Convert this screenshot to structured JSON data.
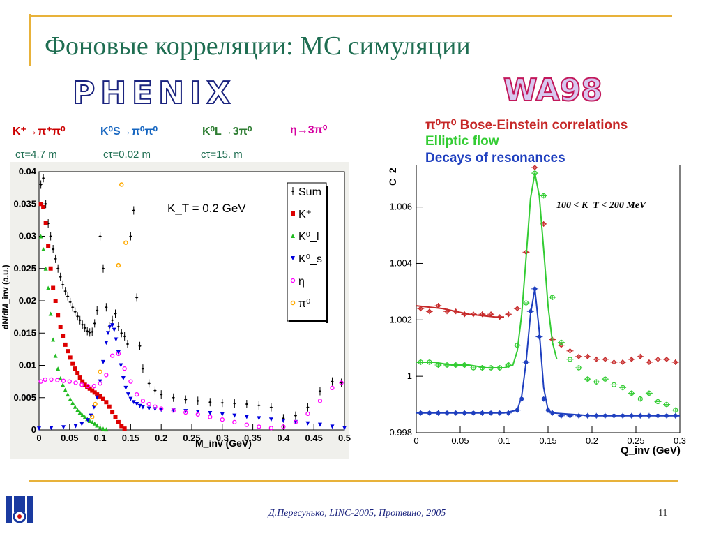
{
  "slide": {
    "title": "Фоновые корреляции: MC симуляции",
    "footer": "Д.Пересунько, LINC-2005, Протвино, 2005",
    "page_number": "11",
    "left_logo": "PHENIX",
    "right_logo": "WA98",
    "accent_color": "#e8b23a",
    "title_color": "#1f6e52"
  },
  "decays": [
    {
      "label": "K⁺→π⁺π⁰",
      "ctau": "cτ=4.7 m",
      "color": "#cc0000"
    },
    {
      "label": "K⁰S→π⁰π⁰",
      "ctau": "cτ=0.02 m",
      "color": "#1565c0"
    },
    {
      "label": "K⁰L→3π⁰",
      "ctau": "cτ=15. m",
      "color": "#2e7d32"
    },
    {
      "label": "η→3π⁰",
      "ctau": "",
      "color": "#d500a0"
    }
  ],
  "right_labels": [
    {
      "text": "π⁰π⁰ Bose-Einstein correlations",
      "color": "#c62828"
    },
    {
      "text": "Elliptic flow",
      "color": "#33cc33"
    },
    {
      "text": "Decays of resonances",
      "color": "#1e3fbf"
    }
  ],
  "chart_data": [
    {
      "type": "scatter",
      "title": "",
      "annotation": "K_T = 0.2 GeV",
      "xlabel": "M_inv (GeV)",
      "ylabel": "dN/dM_inv (a.u.)",
      "xlim": [
        0,
        0.5
      ],
      "ylim": [
        0,
        0.04
      ],
      "xticks": [
        "0",
        "0.05",
        "0.1",
        "0.15",
        "0.2",
        "0.25",
        "0.3",
        "0.35",
        "0.4",
        "0.45",
        "0.5"
      ],
      "yticks": [
        "0",
        "0.005",
        "0.01",
        "0.015",
        "0.02",
        "0.025",
        "0.03",
        "0.035",
        "0.04"
      ],
      "legend_position": "top-right",
      "series": [
        {
          "name": "Sum",
          "color": "#000000",
          "marker": "cross",
          "x": [
            0.003,
            0.007,
            0.011,
            0.015,
            0.019,
            0.023,
            0.027,
            0.031,
            0.035,
            0.039,
            0.043,
            0.047,
            0.051,
            0.055,
            0.059,
            0.063,
            0.067,
            0.071,
            0.075,
            0.079,
            0.083,
            0.087,
            0.091,
            0.095,
            0.1,
            0.105,
            0.11,
            0.115,
            0.12,
            0.125,
            0.13,
            0.135,
            0.14,
            0.145,
            0.15,
            0.155,
            0.16,
            0.165,
            0.17,
            0.18,
            0.19,
            0.2,
            0.22,
            0.24,
            0.26,
            0.28,
            0.3,
            0.32,
            0.34,
            0.36,
            0.38,
            0.4,
            0.42,
            0.44,
            0.46,
            0.48,
            0.495
          ],
          "y": [
            0.038,
            0.039,
            0.035,
            0.032,
            0.03,
            0.028,
            0.0265,
            0.025,
            0.0237,
            0.0225,
            0.0215,
            0.0207,
            0.0198,
            0.019,
            0.0183,
            0.0176,
            0.017,
            0.0163,
            0.0158,
            0.0153,
            0.0151,
            0.0152,
            0.0165,
            0.0185,
            0.03,
            0.025,
            0.019,
            0.016,
            0.017,
            0.018,
            0.016,
            0.015,
            0.0145,
            0.0133,
            0.03,
            0.034,
            0.0205,
            0.013,
            0.0095,
            0.0072,
            0.0061,
            0.0055,
            0.005,
            0.0047,
            0.0045,
            0.0043,
            0.0042,
            0.0041,
            0.004,
            0.0038,
            0.0035,
            0.0018,
            0.0022,
            0.0035,
            0.006,
            0.0075,
            0.0073
          ]
        },
        {
          "name": "K⁺",
          "color": "#dd0000",
          "marker": "square",
          "x": [
            0.003,
            0.007,
            0.011,
            0.015,
            0.019,
            0.023,
            0.027,
            0.031,
            0.035,
            0.039,
            0.043,
            0.047,
            0.051,
            0.055,
            0.059,
            0.063,
            0.067,
            0.071,
            0.075,
            0.079,
            0.083,
            0.087,
            0.091,
            0.095,
            0.1,
            0.105,
            0.11,
            0.115,
            0.12,
            0.125,
            0.13,
            0.135,
            0.14
          ],
          "y": [
            0.035,
            0.0345,
            0.032,
            0.0285,
            0.025,
            0.022,
            0.02,
            0.0178,
            0.016,
            0.0145,
            0.0132,
            0.0122,
            0.0112,
            0.0103,
            0.0095,
            0.0088,
            0.0081,
            0.0075,
            0.007,
            0.0066,
            0.0064,
            0.0061,
            0.0058,
            0.0055,
            0.0052,
            0.0048,
            0.0043,
            0.0036,
            0.0028,
            0.002,
            0.0012,
            0.0006,
            0.0002
          ]
        },
        {
          "name": "K⁰_l",
          "color": "#22bb22",
          "marker": "triangle-up",
          "x": [
            0.003,
            0.007,
            0.011,
            0.015,
            0.019,
            0.023,
            0.027,
            0.031,
            0.035,
            0.039,
            0.043,
            0.047,
            0.051,
            0.055,
            0.059,
            0.063,
            0.067,
            0.071,
            0.075,
            0.079,
            0.083,
            0.087,
            0.091,
            0.095,
            0.1,
            0.105,
            0.11
          ],
          "y": [
            0.03,
            0.028,
            0.025,
            0.022,
            0.018,
            0.014,
            0.0115,
            0.0095,
            0.008,
            0.007,
            0.0062,
            0.0055,
            0.0048,
            0.0042,
            0.0036,
            0.0031,
            0.0027,
            0.0023,
            0.002,
            0.0017,
            0.0014,
            0.0012,
            0.001,
            0.0007,
            0.0004,
            0.0002,
            0.0001
          ]
        },
        {
          "name": "K⁰_s",
          "color": "#0000dd",
          "marker": "triangle-down",
          "x": [
            0,
            0.02,
            0.04,
            0.06,
            0.07,
            0.08,
            0.085,
            0.09,
            0.095,
            0.1,
            0.105,
            0.11,
            0.113,
            0.116,
            0.12,
            0.123,
            0.126,
            0.13,
            0.134,
            0.138,
            0.142,
            0.146,
            0.15,
            0.155,
            0.16,
            0.165,
            0.17,
            0.18,
            0.19,
            0.2,
            0.22,
            0.24,
            0.26,
            0.28,
            0.3,
            0.32,
            0.34,
            0.36,
            0.38,
            0.4,
            0.42,
            0.44,
            0.46,
            0.48,
            0.5
          ],
          "y": [
            0.0002,
            0.0003,
            0.0004,
            0.0006,
            0.0009,
            0.0015,
            0.0022,
            0.0035,
            0.005,
            0.0075,
            0.0105,
            0.0135,
            0.015,
            0.016,
            0.0162,
            0.0155,
            0.014,
            0.012,
            0.01,
            0.008,
            0.0065,
            0.0055,
            0.0048,
            0.0043,
            0.004,
            0.0037,
            0.0035,
            0.0033,
            0.0032,
            0.0031,
            0.003,
            0.0029,
            0.0028,
            0.0026,
            0.0024,
            0.0022,
            0.002,
            0.0018,
            0.0016,
            0.0014,
            0.0012,
            0.001,
            0.0008,
            0.0005,
            0.0003
          ]
        },
        {
          "name": "η",
          "color": "#ff00ff",
          "marker": "circle",
          "x": [
            0.003,
            0.01,
            0.02,
            0.03,
            0.04,
            0.05,
            0.06,
            0.07,
            0.08,
            0.09,
            0.1,
            0.11,
            0.12,
            0.13,
            0.14,
            0.15,
            0.16,
            0.17,
            0.18,
            0.19,
            0.2,
            0.22,
            0.24,
            0.26,
            0.28,
            0.3,
            0.32,
            0.34,
            0.36,
            0.38,
            0.4,
            0.42,
            0.44,
            0.46,
            0.48,
            0.495
          ],
          "y": [
            0.0075,
            0.0078,
            0.0078,
            0.0077,
            0.0076,
            0.0075,
            0.0073,
            0.007,
            0.0068,
            0.0068,
            0.0072,
            0.0085,
            0.0115,
            0.0118,
            0.0095,
            0.0075,
            0.0055,
            0.0045,
            0.004,
            0.0036,
            0.0033,
            0.003,
            0.0027,
            0.0024,
            0.002,
            0.0016,
            0.0012,
            0.0008,
            0.0005,
            0.0003,
            0.0005,
            0.0012,
            0.0025,
            0.0045,
            0.0065,
            0.0073
          ]
        },
        {
          "name": "π⁰",
          "color": "#ffaa00",
          "marker": "circle-open",
          "x": [
            0.087,
            0.092,
            0.1,
            0.13,
            0.135,
            0.142
          ],
          "y": [
            0.002,
            0.004,
            0.009,
            0.0255,
            0.038,
            0.029
          ]
        }
      ],
      "legend": [
        "Sum",
        "K⁺",
        "K⁰_l",
        "K⁰_s",
        "η",
        "π⁰"
      ]
    },
    {
      "type": "line",
      "title": "",
      "annotation": "100 < K_T < 200 MeV",
      "xlabel": "Q_inv (GeV)",
      "ylabel": "C_2",
      "xlim": [
        0,
        0.3
      ],
      "ylim": [
        0.998,
        1.0075
      ],
      "xticks": [
        "0",
        "0.05",
        "0.1",
        "0.15",
        "0.2",
        "0.25",
        "0.3"
      ],
      "yticks": [
        "0.998",
        "1",
        "1.002",
        "1.004",
        "1.006"
      ],
      "series": [
        {
          "name": "π⁰π⁰ Bose-Einstein correlations",
          "color": "#c62828",
          "x": [
            0.005,
            0.015,
            0.025,
            0.035,
            0.045,
            0.055,
            0.065,
            0.075,
            0.085,
            0.095,
            0.105,
            0.115,
            0.125,
            0.135,
            0.145,
            0.155,
            0.165,
            0.175,
            0.185,
            0.195,
            0.205,
            0.215,
            0.225,
            0.235,
            0.245,
            0.255,
            0.265,
            0.275,
            0.285,
            0.295
          ],
          "y": [
            1.0024,
            1.0023,
            1.0025,
            1.0023,
            1.0023,
            1.0022,
            1.0022,
            1.0022,
            1.0022,
            1.0021,
            1.0022,
            1.0024,
            1.0044,
            1.0074,
            1.0054,
            1.0013,
            1.0011,
            1.0009,
            1.0007,
            1.0007,
            1.0006,
            1.0006,
            1.0005,
            1.0005,
            1.0006,
            1.0007,
            1.0005,
            1.0006,
            1.0006,
            1.0005
          ],
          "fit_x": [
            0,
            0.03,
            0.06,
            0.09,
            0.1
          ],
          "fit_y": [
            1.0025,
            1.0024,
            1.0022,
            1.0021,
            1.0021
          ]
        },
        {
          "name": "Elliptic flow",
          "color": "#33cc33",
          "x": [
            0.005,
            0.015,
            0.025,
            0.035,
            0.045,
            0.055,
            0.065,
            0.075,
            0.085,
            0.095,
            0.105,
            0.115,
            0.125,
            0.135,
            0.145,
            0.155,
            0.165,
            0.175,
            0.185,
            0.195,
            0.205,
            0.215,
            0.225,
            0.235,
            0.245,
            0.255,
            0.265,
            0.275,
            0.285,
            0.295
          ],
          "y": [
            1.0005,
            1.0005,
            1.0004,
            1.0004,
            1.0004,
            1.0004,
            1.0003,
            1.0003,
            1.0003,
            1.0003,
            1.0004,
            1.0011,
            1.0026,
            1.0072,
            1.0064,
            1.0028,
            1.0012,
            1.0006,
            1.0003,
            0.9999,
            0.9998,
            0.9999,
            0.9997,
            0.9996,
            0.9994,
            0.9992,
            0.9994,
            0.9991,
            0.999,
            0.9988
          ],
          "fit_x": [
            0,
            0.02,
            0.04,
            0.06,
            0.08,
            0.1,
            0.11,
            0.115,
            0.12,
            0.125,
            0.13,
            0.135,
            0.14,
            0.145,
            0.15,
            0.155,
            0.16
          ],
          "fit_y": [
            1.0005,
            1.0005,
            1.0004,
            1.0004,
            1.0003,
            1.0003,
            1.0004,
            1.0009,
            1.0022,
            1.0042,
            1.0063,
            1.0072,
            1.0064,
            1.0045,
            1.0025,
            1.0012,
            1.0006
          ]
        },
        {
          "name": "Decays of resonances",
          "color": "#1e3fbf",
          "x": [
            0.005,
            0.015,
            0.025,
            0.035,
            0.045,
            0.055,
            0.065,
            0.075,
            0.085,
            0.095,
            0.105,
            0.115,
            0.12,
            0.125,
            0.13,
            0.135,
            0.14,
            0.145,
            0.15,
            0.155,
            0.165,
            0.175,
            0.185,
            0.195,
            0.205,
            0.215,
            0.225,
            0.235,
            0.245,
            0.255,
            0.265,
            0.275,
            0.285,
            0.295
          ],
          "y": [
            0.9987,
            0.9987,
            0.9987,
            0.9987,
            0.9987,
            0.9987,
            0.9987,
            0.9987,
            0.9987,
            0.9987,
            0.9987,
            0.9988,
            0.9992,
            1.0005,
            1.0023,
            1.0031,
            1.0014,
            0.9992,
            0.9988,
            0.9987,
            0.9986,
            0.9986,
            0.9986,
            0.9986,
            0.9986,
            0.9986,
            0.9986,
            0.9986,
            0.9986,
            0.9986,
            0.9986,
            0.9986,
            0.9986,
            0.9986
          ],
          "fit_x": [
            0,
            0.05,
            0.1,
            0.115,
            0.12,
            0.125,
            0.13,
            0.135,
            0.14,
            0.145,
            0.15,
            0.155,
            0.2,
            0.3
          ],
          "fit_y": [
            0.9987,
            0.9987,
            0.9987,
            0.9988,
            0.9993,
            1.0005,
            1.0022,
            1.0031,
            1.0016,
            0.9996,
            0.9988,
            0.9987,
            0.9986,
            0.9986
          ]
        }
      ]
    }
  ]
}
